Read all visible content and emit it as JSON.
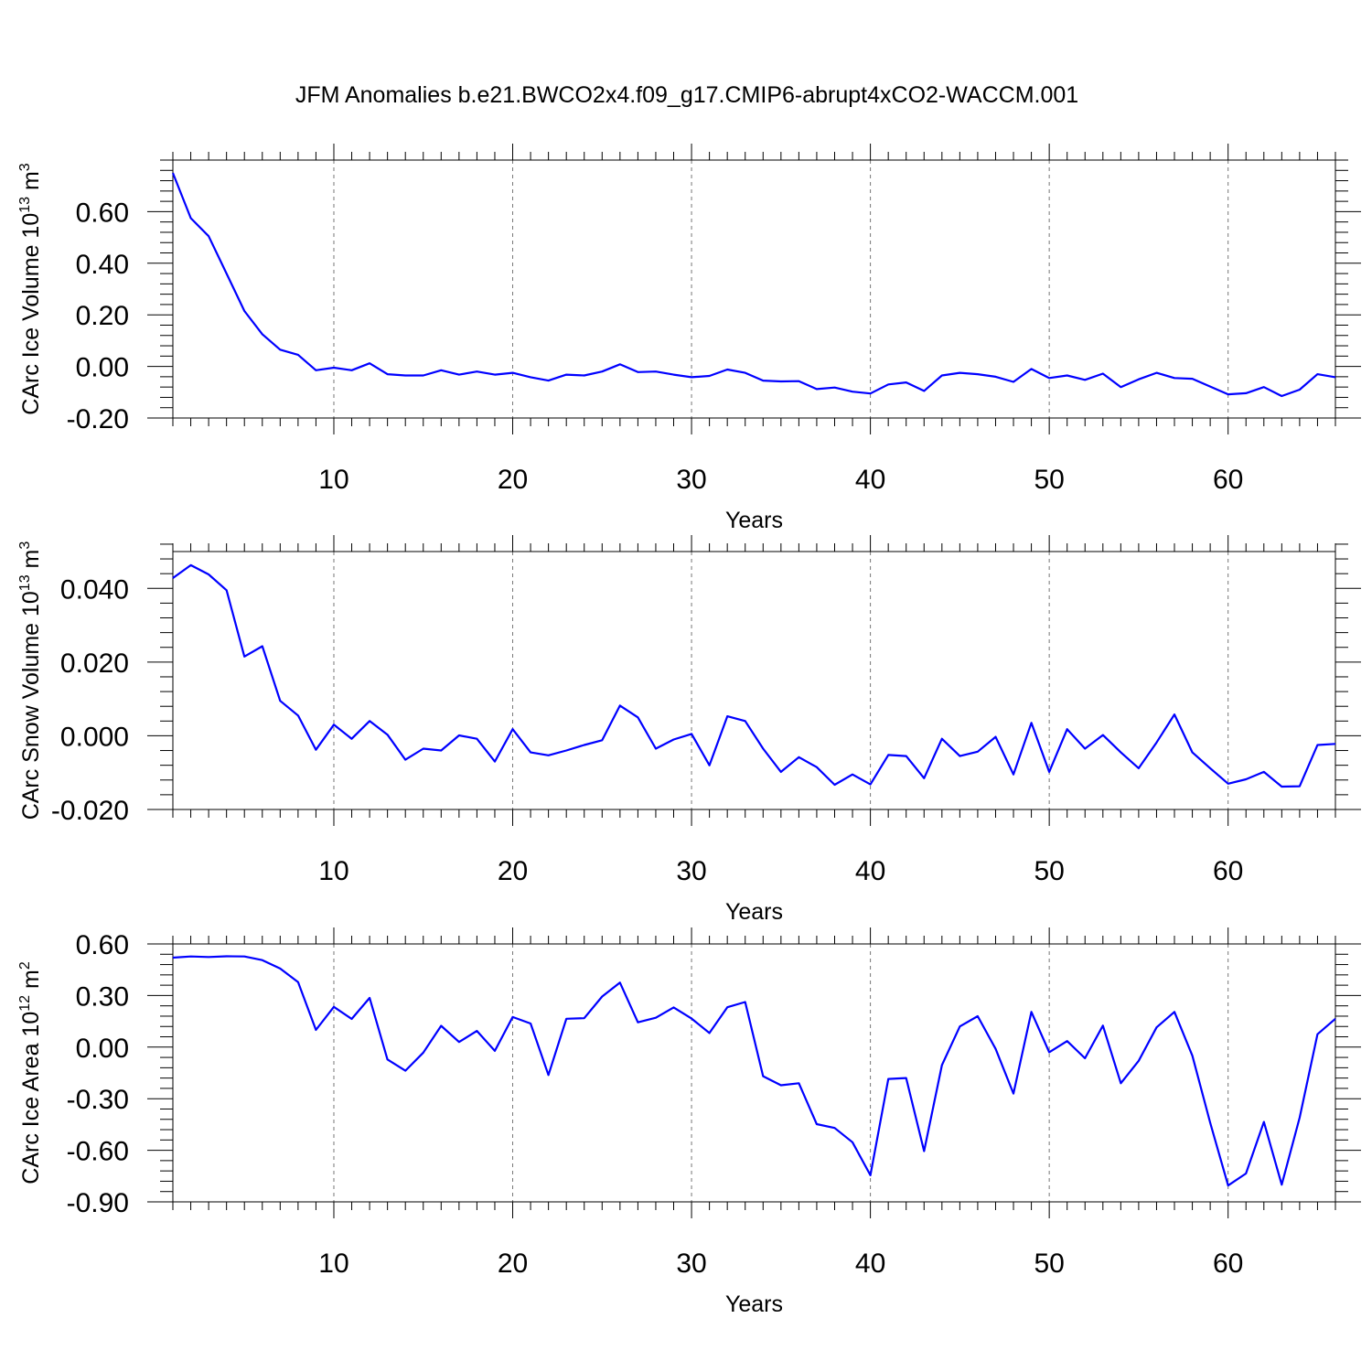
{
  "title": "JFM Anomalies b.e21.BWCO2x4.f09_g17.CMIP6-abrupt4xCO2-WACCM.001",
  "chart_data": [
    {
      "type": "line",
      "xlabel": "Years",
      "ylabel": "CArc Ice Volume 10",
      "ylabel_sup": "13",
      "ylabel_unit": " m",
      "ylabel_unit_sup": "3",
      "xlim": [
        1,
        66
      ],
      "ylim": [
        -0.2,
        0.8
      ],
      "xticks": [
        10,
        20,
        30,
        40,
        50,
        60
      ],
      "xtick_labels": [
        "10",
        "20",
        "30",
        "40",
        "50",
        "60"
      ],
      "yticks": [
        -0.2,
        0.0,
        0.2,
        0.4,
        0.6
      ],
      "ytick_labels": [
        "-0.20",
        "0.00",
        "0.20",
        "0.40",
        "0.60"
      ],
      "grid": "vertical dashed at major x ticks",
      "color": "#0000ff",
      "x": [
        1,
        2,
        3,
        4,
        5,
        6,
        7,
        8,
        9,
        10,
        11,
        12,
        13,
        14,
        15,
        16,
        17,
        18,
        19,
        20,
        21,
        22,
        23,
        24,
        25,
        26,
        27,
        28,
        29,
        30,
        31,
        32,
        33,
        34,
        35,
        36,
        37,
        38,
        39,
        40,
        41,
        42,
        43,
        44,
        45,
        46,
        47,
        48,
        49,
        50,
        51,
        52,
        53,
        54,
        55,
        56,
        57,
        58,
        59,
        60,
        61,
        62,
        63,
        64,
        65,
        66
      ],
      "values": [
        0.75,
        0.575,
        0.505,
        0.36,
        0.215,
        0.125,
        0.065,
        0.045,
        -0.015,
        -0.005,
        -0.015,
        0.012,
        -0.03,
        -0.035,
        -0.035,
        -0.015,
        -0.032,
        -0.02,
        -0.032,
        -0.025,
        -0.042,
        -0.055,
        -0.032,
        -0.035,
        -0.02,
        0.008,
        -0.022,
        -0.02,
        -0.032,
        -0.042,
        -0.037,
        -0.012,
        -0.025,
        -0.055,
        -0.058,
        -0.057,
        -0.088,
        -0.082,
        -0.098,
        -0.105,
        -0.07,
        -0.062,
        -0.095,
        -0.035,
        -0.025,
        -0.03,
        -0.04,
        -0.06,
        -0.01,
        -0.045,
        -0.035,
        -0.052,
        -0.028,
        -0.08,
        -0.05,
        -0.025,
        -0.045,
        -0.048,
        -0.078,
        -0.108,
        -0.104,
        -0.08,
        -0.115,
        -0.09,
        -0.03,
        -0.042
      ]
    },
    {
      "type": "line",
      "xlabel": "Years",
      "ylabel": "CArc Snow Volume 10",
      "ylabel_sup": "13",
      "ylabel_unit": " m",
      "ylabel_unit_sup": "3",
      "xlim": [
        1,
        66
      ],
      "ylim": [
        -0.02,
        0.05
      ],
      "xticks": [
        10,
        20,
        30,
        40,
        50,
        60
      ],
      "xtick_labels": [
        "10",
        "20",
        "30",
        "40",
        "50",
        "60"
      ],
      "yticks": [
        -0.02,
        0.0,
        0.02,
        0.04
      ],
      "ytick_labels": [
        "-0.020",
        "0.000",
        "0.020",
        "0.040"
      ],
      "grid": "vertical dashed at major x ticks",
      "color": "#0000ff",
      "x": [
        1,
        2,
        3,
        4,
        5,
        6,
        7,
        8,
        9,
        10,
        11,
        12,
        13,
        14,
        15,
        16,
        17,
        18,
        19,
        20,
        21,
        22,
        23,
        24,
        25,
        26,
        27,
        28,
        29,
        30,
        31,
        32,
        33,
        34,
        35,
        36,
        37,
        38,
        39,
        40,
        41,
        42,
        43,
        44,
        45,
        46,
        47,
        48,
        49,
        50,
        51,
        52,
        53,
        54,
        55,
        56,
        57,
        58,
        59,
        60,
        61,
        62,
        63,
        64,
        65,
        66
      ],
      "values": [
        0.0428,
        0.0463,
        0.0438,
        0.0395,
        0.0215,
        0.0243,
        0.0095,
        0.0055,
        -0.0038,
        0.003,
        -0.0008,
        0.004,
        0.0003,
        -0.0065,
        -0.0035,
        -0.004,
        0.0001,
        -0.0008,
        -0.007,
        0.0018,
        -0.0045,
        -0.0053,
        -0.004,
        -0.0025,
        -0.0012,
        0.0082,
        0.005,
        -0.0035,
        -0.001,
        0.0005,
        -0.008,
        0.0053,
        0.004,
        -0.0035,
        -0.0098,
        -0.0058,
        -0.0085,
        -0.0133,
        -0.0105,
        -0.0132,
        -0.0052,
        -0.0055,
        -0.0115,
        -0.0008,
        -0.0055,
        -0.0043,
        -0.0003,
        -0.0105,
        0.0035,
        -0.0098,
        0.0018,
        -0.0035,
        0.0002,
        -0.0045,
        -0.0088,
        -0.0018,
        0.0058,
        -0.0045,
        -0.0088,
        -0.013,
        -0.0118,
        -0.0098,
        -0.0138,
        -0.0137,
        -0.0025,
        -0.0022
      ]
    },
    {
      "type": "line",
      "xlabel": "Years",
      "ylabel": "CArc Ice Area 10",
      "ylabel_sup": "12",
      "ylabel_unit": " m",
      "ylabel_unit_sup": "2",
      "xlim": [
        1,
        66
      ],
      "ylim": [
        -0.9,
        0.6
      ],
      "xticks": [
        10,
        20,
        30,
        40,
        50,
        60
      ],
      "xtick_labels": [
        "10",
        "20",
        "30",
        "40",
        "50",
        "60"
      ],
      "yticks": [
        -0.9,
        -0.6,
        -0.3,
        0.0,
        0.3,
        0.6
      ],
      "ytick_labels": [
        "-0.90",
        "-0.60",
        "-0.30",
        "0.00",
        "0.30",
        "0.60"
      ],
      "grid": "vertical dashed at major x ticks",
      "color": "#0000ff",
      "x": [
        1,
        2,
        3,
        4,
        5,
        6,
        7,
        8,
        9,
        10,
        11,
        12,
        13,
        14,
        15,
        16,
        17,
        18,
        19,
        20,
        21,
        22,
        23,
        24,
        25,
        26,
        27,
        28,
        29,
        30,
        31,
        32,
        33,
        34,
        35,
        36,
        37,
        38,
        39,
        40,
        41,
        42,
        43,
        44,
        45,
        46,
        47,
        48,
        49,
        50,
        51,
        52,
        53,
        54,
        55,
        56,
        57,
        58,
        59,
        60,
        61,
        62,
        63,
        64,
        65,
        66
      ],
      "values": [
        0.52,
        0.527,
        0.524,
        0.528,
        0.527,
        0.506,
        0.457,
        0.378,
        0.1,
        0.234,
        0.164,
        0.286,
        -0.072,
        -0.137,
        -0.032,
        0.124,
        0.03,
        0.094,
        -0.022,
        0.175,
        0.137,
        -0.162,
        0.165,
        0.168,
        0.294,
        0.375,
        0.144,
        0.171,
        0.231,
        0.166,
        0.082,
        0.232,
        0.262,
        -0.169,
        -0.222,
        -0.21,
        -0.448,
        -0.47,
        -0.553,
        -0.745,
        -0.185,
        -0.18,
        -0.605,
        -0.105,
        0.12,
        0.18,
        -0.01,
        -0.27,
        0.205,
        -0.03,
        0.035,
        -0.065,
        0.125,
        -0.21,
        -0.08,
        0.115,
        0.205,
        -0.05,
        -0.44,
        -0.805,
        -0.735,
        -0.435,
        -0.8,
        -0.41,
        0.075,
        0.165
      ]
    }
  ]
}
